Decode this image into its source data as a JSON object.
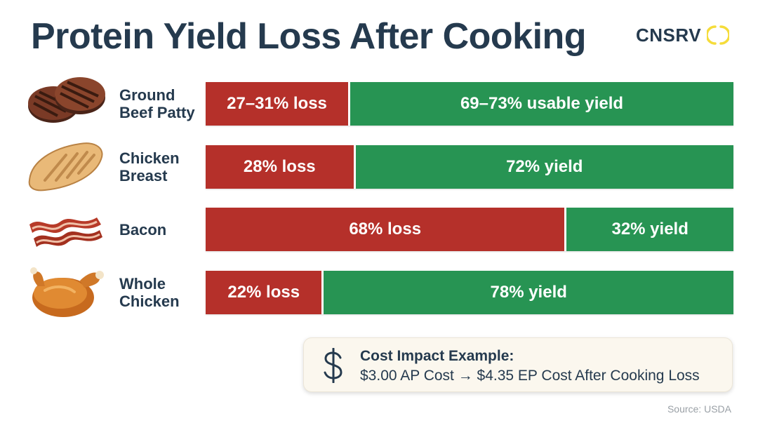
{
  "title": "Protein Yield Loss After Cooking",
  "brand": {
    "name": "CNSRV",
    "logo_icon": "open-circle-logo-icon",
    "accent": "#f5dc3a"
  },
  "colors": {
    "loss": "#b5302a",
    "yield": "#279453",
    "text": "#253a4e"
  },
  "chart_data": {
    "type": "bar",
    "orientation": "horizontal-stacked-100",
    "title": "Protein Yield Loss After Cooking",
    "categories": [
      "Ground\nBeef Patty",
      "Chicken\nBreast",
      "Bacon",
      "Whole\nChicken"
    ],
    "icons": [
      "beef-patty-icon",
      "chicken-breast-icon",
      "bacon-icon",
      "roast-chicken-icon"
    ],
    "series": [
      {
        "name": "loss",
        "values": [
          27,
          28,
          68,
          22
        ],
        "labels": [
          "27–31% loss",
          "28% loss",
          "68% loss",
          "22% loss"
        ]
      },
      {
        "name": "yield",
        "values": [
          73,
          72,
          32,
          78
        ],
        "labels": [
          "69–73% usable yield",
          "72% yield",
          "32% yield",
          "78% yield"
        ]
      }
    ],
    "xlim": [
      0,
      100
    ]
  },
  "callout": {
    "icon": "dollar-icon",
    "title": "Cost Impact Example:",
    "text": "$3.00 AP Cost → $4.35 EP Cost After Cooking Loss"
  },
  "source": "Source: USDA"
}
